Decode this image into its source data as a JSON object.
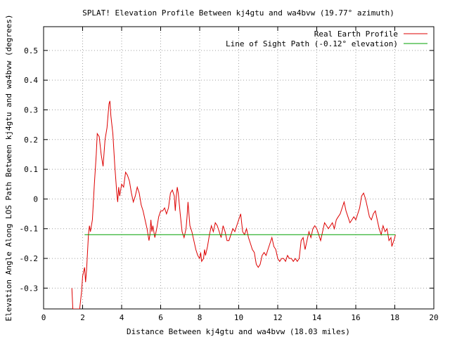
{
  "chart_data": {
    "type": "line",
    "title": "SPLAT! Elevation Profile Between kj4gtu and wa4bvw (19.77° azimuth)",
    "xlabel": "Distance Between kj4gtu and wa4bvw (18.03 miles)",
    "ylabel": "Elevation Angle Along LOS Path Between kj4gtu and wa4bvw (degrees)",
    "xlim": [
      0,
      20
    ],
    "ylim": [
      -0.37,
      0.58
    ],
    "grid": true,
    "legend_position": "top-right",
    "x_ticks": [
      "0",
      "2",
      "4",
      "6",
      "8",
      "10",
      "12",
      "14",
      "16",
      "18",
      "20"
    ],
    "y_ticks": [
      "0.5",
      "0.4",
      "0.3",
      "0.2",
      "0.1",
      "0",
      "-0.1",
      "-0.2",
      "-0.3"
    ],
    "series": [
      {
        "name": "Real Earth Profile",
        "color": "#dd0000",
        "points": [
          [
            1.45,
            -0.3
          ],
          [
            1.5,
            -0.37
          ],
          [
            1.85,
            -0.37
          ],
          [
            1.95,
            -0.31
          ],
          [
            2.0,
            -0.26
          ],
          [
            2.1,
            -0.23
          ],
          [
            2.15,
            -0.28
          ],
          [
            2.2,
            -0.24
          ],
          [
            2.3,
            -0.12
          ],
          [
            2.35,
            -0.09
          ],
          [
            2.4,
            -0.11
          ],
          [
            2.5,
            -0.07
          ],
          [
            2.6,
            0.05
          ],
          [
            2.7,
            0.15
          ],
          [
            2.75,
            0.22
          ],
          [
            2.85,
            0.21
          ],
          [
            2.95,
            0.15
          ],
          [
            3.05,
            0.11
          ],
          [
            3.15,
            0.2
          ],
          [
            3.25,
            0.24
          ],
          [
            3.35,
            0.32
          ],
          [
            3.4,
            0.33
          ],
          [
            3.45,
            0.28
          ],
          [
            3.55,
            0.22
          ],
          [
            3.65,
            0.11
          ],
          [
            3.75,
            0.02
          ],
          [
            3.8,
            -0.01
          ],
          [
            3.85,
            0.04
          ],
          [
            3.9,
            0.01
          ],
          [
            4.0,
            0.05
          ],
          [
            4.1,
            0.04
          ],
          [
            4.2,
            0.09
          ],
          [
            4.3,
            0.08
          ],
          [
            4.4,
            0.06
          ],
          [
            4.5,
            0.02
          ],
          [
            4.6,
            -0.01
          ],
          [
            4.7,
            0.01
          ],
          [
            4.8,
            0.04
          ],
          [
            4.9,
            0.02
          ],
          [
            5.0,
            -0.02
          ],
          [
            5.1,
            -0.04
          ],
          [
            5.2,
            -0.07
          ],
          [
            5.3,
            -0.1
          ],
          [
            5.4,
            -0.14
          ],
          [
            5.45,
            -0.12
          ],
          [
            5.5,
            -0.07
          ],
          [
            5.55,
            -0.11
          ],
          [
            5.6,
            -0.09
          ],
          [
            5.7,
            -0.13
          ],
          [
            5.8,
            -0.1
          ],
          [
            5.9,
            -0.06
          ],
          [
            6.0,
            -0.04
          ],
          [
            6.1,
            -0.04
          ],
          [
            6.2,
            -0.03
          ],
          [
            6.3,
            -0.05
          ],
          [
            6.4,
            -0.03
          ],
          [
            6.5,
            0.02
          ],
          [
            6.6,
            0.03
          ],
          [
            6.7,
            0.01
          ],
          [
            6.75,
            -0.04
          ],
          [
            6.8,
            0.01
          ],
          [
            6.85,
            0.04
          ],
          [
            6.9,
            0.02
          ],
          [
            7.0,
            -0.05
          ],
          [
            7.1,
            -0.11
          ],
          [
            7.2,
            -0.13
          ],
          [
            7.3,
            -0.1
          ],
          [
            7.35,
            -0.06
          ],
          [
            7.4,
            -0.01
          ],
          [
            7.45,
            -0.05
          ],
          [
            7.5,
            -0.09
          ],
          [
            7.6,
            -0.11
          ],
          [
            7.7,
            -0.14
          ],
          [
            7.8,
            -0.17
          ],
          [
            7.9,
            -0.19
          ],
          [
            8.0,
            -0.2
          ],
          [
            8.05,
            -0.18
          ],
          [
            8.1,
            -0.21
          ],
          [
            8.2,
            -0.2
          ],
          [
            8.25,
            -0.17
          ],
          [
            8.3,
            -0.19
          ],
          [
            8.4,
            -0.16
          ],
          [
            8.5,
            -0.12
          ],
          [
            8.6,
            -0.09
          ],
          [
            8.7,
            -0.11
          ],
          [
            8.8,
            -0.08
          ],
          [
            8.9,
            -0.09
          ],
          [
            9.0,
            -0.11
          ],
          [
            9.1,
            -0.13
          ],
          [
            9.2,
            -0.09
          ],
          [
            9.3,
            -0.11
          ],
          [
            9.4,
            -0.14
          ],
          [
            9.5,
            -0.14
          ],
          [
            9.6,
            -0.12
          ],
          [
            9.7,
            -0.1
          ],
          [
            9.8,
            -0.11
          ],
          [
            9.9,
            -0.09
          ],
          [
            10.0,
            -0.07
          ],
          [
            10.1,
            -0.05
          ],
          [
            10.2,
            -0.11
          ],
          [
            10.3,
            -0.12
          ],
          [
            10.4,
            -0.1
          ],
          [
            10.5,
            -0.13
          ],
          [
            10.6,
            -0.15
          ],
          [
            10.7,
            -0.17
          ],
          [
            10.8,
            -0.18
          ],
          [
            10.9,
            -0.22
          ],
          [
            11.0,
            -0.23
          ],
          [
            11.1,
            -0.22
          ],
          [
            11.2,
            -0.19
          ],
          [
            11.3,
            -0.18
          ],
          [
            11.4,
            -0.19
          ],
          [
            11.5,
            -0.17
          ],
          [
            11.6,
            -0.15
          ],
          [
            11.7,
            -0.13
          ],
          [
            11.8,
            -0.16
          ],
          [
            11.9,
            -0.17
          ],
          [
            12.0,
            -0.2
          ],
          [
            12.1,
            -0.21
          ],
          [
            12.2,
            -0.2
          ],
          [
            12.3,
            -0.2
          ],
          [
            12.4,
            -0.21
          ],
          [
            12.5,
            -0.19
          ],
          [
            12.6,
            -0.2
          ],
          [
            12.7,
            -0.2
          ],
          [
            12.8,
            -0.21
          ],
          [
            12.9,
            -0.2
          ],
          [
            13.0,
            -0.21
          ],
          [
            13.1,
            -0.2
          ],
          [
            13.2,
            -0.14
          ],
          [
            13.3,
            -0.13
          ],
          [
            13.4,
            -0.17
          ],
          [
            13.5,
            -0.14
          ],
          [
            13.6,
            -0.11
          ],
          [
            13.7,
            -0.13
          ],
          [
            13.8,
            -0.1
          ],
          [
            13.9,
            -0.09
          ],
          [
            14.0,
            -0.1
          ],
          [
            14.1,
            -0.12
          ],
          [
            14.2,
            -0.14
          ],
          [
            14.3,
            -0.11
          ],
          [
            14.4,
            -0.08
          ],
          [
            14.5,
            -0.09
          ],
          [
            14.6,
            -0.1
          ],
          [
            14.7,
            -0.09
          ],
          [
            14.8,
            -0.08
          ],
          [
            14.9,
            -0.1
          ],
          [
            15.0,
            -0.07
          ],
          [
            15.1,
            -0.06
          ],
          [
            15.2,
            -0.05
          ],
          [
            15.3,
            -0.03
          ],
          [
            15.4,
            -0.01
          ],
          [
            15.5,
            -0.04
          ],
          [
            15.6,
            -0.06
          ],
          [
            15.7,
            -0.08
          ],
          [
            15.8,
            -0.07
          ],
          [
            15.9,
            -0.06
          ],
          [
            16.0,
            -0.07
          ],
          [
            16.1,
            -0.05
          ],
          [
            16.2,
            -0.03
          ],
          [
            16.3,
            0.01
          ],
          [
            16.4,
            0.02
          ],
          [
            16.5,
            0.0
          ],
          [
            16.6,
            -0.03
          ],
          [
            16.7,
            -0.06
          ],
          [
            16.8,
            -0.07
          ],
          [
            16.9,
            -0.05
          ],
          [
            17.0,
            -0.04
          ],
          [
            17.1,
            -0.07
          ],
          [
            17.2,
            -0.1
          ],
          [
            17.3,
            -0.12
          ],
          [
            17.4,
            -0.09
          ],
          [
            17.5,
            -0.11
          ],
          [
            17.6,
            -0.1
          ],
          [
            17.7,
            -0.14
          ],
          [
            17.8,
            -0.13
          ],
          [
            17.85,
            -0.16
          ],
          [
            17.9,
            -0.15
          ],
          [
            18.0,
            -0.13
          ],
          [
            18.03,
            -0.12
          ]
        ]
      },
      {
        "name": "Line of Sight Path (-0.12° elevation)",
        "color": "#00a000",
        "points": [
          [
            2.1,
            -0.12
          ],
          [
            18.03,
            -0.12
          ]
        ]
      }
    ]
  }
}
